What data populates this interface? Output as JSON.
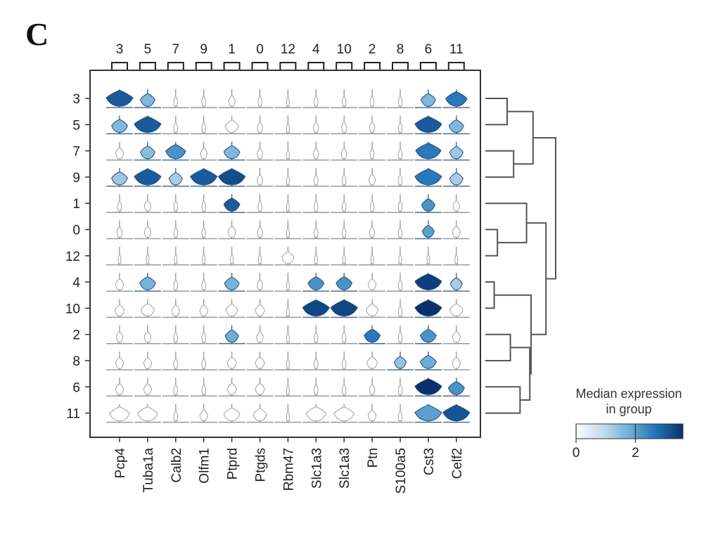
{
  "panel_label": "C",
  "chart_data": {
    "type": "heatmap",
    "subtype": "stacked-violin",
    "title": "",
    "xlabel": "",
    "ylabel": "",
    "genes": [
      "Pcp4",
      "Tuba1a",
      "Calb2",
      "Olfm1",
      "Ptprd",
      "Ptgds",
      "Rbm47",
      "Slc1a3",
      "Slc1a3",
      "Ptn",
      "S100a5",
      "Cst3",
      "Celf2"
    ],
    "gene_group_labels": [
      "3",
      "5",
      "7",
      "9",
      "1",
      "0",
      "12",
      "4",
      "10",
      "2",
      "8",
      "6",
      "11"
    ],
    "clusters": [
      "3",
      "5",
      "7",
      "9",
      "1",
      "0",
      "12",
      "4",
      "10",
      "2",
      "8",
      "6",
      "11"
    ],
    "median_expression": [
      [
        3.0,
        1.6,
        0,
        0,
        0,
        0,
        0,
        0,
        0,
        0,
        0,
        1.6,
        2.6
      ],
      [
        1.6,
        3.0,
        0,
        0,
        0,
        0,
        0,
        0,
        0,
        0,
        0,
        3.0,
        1.6
      ],
      [
        0,
        1.5,
        2.2,
        0,
        1.6,
        0,
        0,
        0,
        0,
        0,
        0,
        2.6,
        1.3
      ],
      [
        1.3,
        3.0,
        1.2,
        3.0,
        3.2,
        0,
        0,
        0,
        0,
        0,
        0,
        2.6,
        1.2
      ],
      [
        0,
        0,
        0,
        0,
        3.0,
        0,
        0,
        0,
        0,
        0,
        0,
        2.2,
        0
      ],
      [
        0,
        0,
        0,
        0,
        0,
        0,
        0,
        0,
        0,
        0,
        0,
        2.0,
        0
      ],
      [
        0,
        0,
        0,
        0,
        0,
        0,
        0,
        0,
        0,
        0,
        0,
        0,
        0
      ],
      [
        0,
        1.7,
        0,
        0,
        1.7,
        0,
        0,
        2.2,
        2.2,
        0,
        0,
        3.4,
        1.2
      ],
      [
        0,
        0,
        0,
        0,
        0,
        0,
        0,
        3.3,
        3.3,
        0,
        0,
        3.6,
        0
      ],
      [
        0,
        0,
        0,
        0,
        1.8,
        0,
        0,
        0,
        0,
        2.6,
        0,
        2.2,
        0
      ],
      [
        0,
        0,
        0,
        0,
        0,
        0,
        0,
        0,
        0,
        0,
        1.4,
        1.8,
        0
      ],
      [
        0,
        0,
        0,
        0,
        0,
        0,
        0,
        0,
        0,
        0,
        0,
        3.6,
        2.2
      ],
      [
        0,
        0,
        0,
        0,
        0,
        0,
        0,
        0,
        0,
        0,
        0,
        2.0,
        3.1
      ]
    ],
    "violin_size": [
      [
        1.0,
        0.55,
        0.15,
        0.15,
        0.25,
        0.15,
        0.1,
        0.15,
        0.15,
        0.15,
        0.15,
        0.55,
        0.8
      ],
      [
        0.6,
        1.0,
        0.15,
        0.15,
        0.5,
        0.2,
        0.1,
        0.2,
        0.2,
        0.2,
        0.15,
        1.0,
        0.55
      ],
      [
        0.3,
        0.55,
        0.75,
        0.25,
        0.6,
        0.2,
        0.1,
        0.2,
        0.2,
        0.15,
        0.15,
        0.95,
        0.5
      ],
      [
        0.6,
        1.0,
        0.5,
        1.0,
        1.0,
        0.2,
        0.1,
        0.15,
        0.15,
        0.25,
        0.15,
        1.0,
        0.5
      ],
      [
        0.15,
        0.25,
        0.15,
        0.15,
        0.6,
        0.15,
        0.1,
        0.15,
        0.15,
        0.15,
        0.15,
        0.5,
        0.25
      ],
      [
        0.2,
        0.25,
        0.15,
        0.15,
        0.3,
        0.2,
        0.1,
        0.15,
        0.15,
        0.2,
        0.15,
        0.45,
        0.3
      ],
      [
        0.1,
        0.1,
        0.1,
        0.1,
        0.1,
        0.1,
        0.45,
        0.1,
        0.1,
        0.1,
        0.1,
        0.1,
        0.1
      ],
      [
        0.3,
        0.6,
        0.15,
        0.15,
        0.55,
        0.2,
        0.1,
        0.6,
        0.6,
        0.3,
        0.15,
        1.0,
        0.45
      ],
      [
        0.35,
        0.5,
        0.3,
        0.3,
        0.45,
        0.35,
        0.1,
        1.0,
        1.0,
        0.45,
        0.15,
        1.0,
        0.5
      ],
      [
        0.25,
        0.25,
        0.15,
        0.15,
        0.5,
        0.25,
        0.1,
        0.15,
        0.15,
        0.6,
        0.15,
        0.6,
        0.3
      ],
      [
        0.3,
        0.3,
        0.15,
        0.15,
        0.35,
        0.35,
        0.1,
        0.15,
        0.15,
        0.4,
        0.45,
        0.6,
        0.3
      ],
      [
        0.3,
        0.3,
        0.15,
        0.15,
        0.35,
        0.35,
        0.1,
        0.15,
        0.15,
        0.2,
        0.15,
        1.0,
        0.6
      ],
      [
        0.75,
        0.75,
        0.15,
        0.3,
        0.6,
        0.5,
        0.1,
        0.75,
        0.75,
        0.3,
        0.15,
        1.0,
        1.0
      ]
    ],
    "dendrogram": {
      "orientation": "right",
      "leaves": [
        "3",
        "5",
        "7",
        "9",
        "1",
        "0",
        "12",
        "4",
        "10",
        "2",
        "8",
        "6",
        "11"
      ],
      "merges": [
        {
          "left": "3",
          "right": "5",
          "height": 0.25
        },
        {
          "left": "7",
          "right": "9",
          "height": 0.35
        },
        {
          "left": "3+5",
          "right": "7+9",
          "height": 0.65
        },
        {
          "left": "0",
          "right": "12",
          "height": 0.1
        },
        {
          "left": "1",
          "right": "0+12",
          "height": 0.55
        },
        {
          "left": "4",
          "right": "10",
          "height": 0.05
        },
        {
          "left": "2",
          "right": "8",
          "height": 0.3
        },
        {
          "left": "6",
          "right": "11",
          "height": 0.45
        },
        {
          "left": "2+8",
          "right": "6+11",
          "height": 0.6
        },
        {
          "left": "4+10",
          "right": "2+8+6+11",
          "height": 0.62
        },
        {
          "left": "1+0+12",
          "right": "4+10+2+8+6+11",
          "height": 0.85
        },
        {
          "left": "3+5+7+9",
          "right": "rest",
          "height": 1.0
        }
      ]
    },
    "colorbar": {
      "title_line1": "Median expression",
      "title_line2": "in group",
      "ticks": [
        "0",
        "2"
      ],
      "tick_values": [
        0,
        2
      ],
      "range": [
        0,
        3.6
      ],
      "colormap": [
        "#f7fbff",
        "#c6dbef",
        "#6baed6",
        "#2171b5",
        "#08306b"
      ]
    }
  }
}
